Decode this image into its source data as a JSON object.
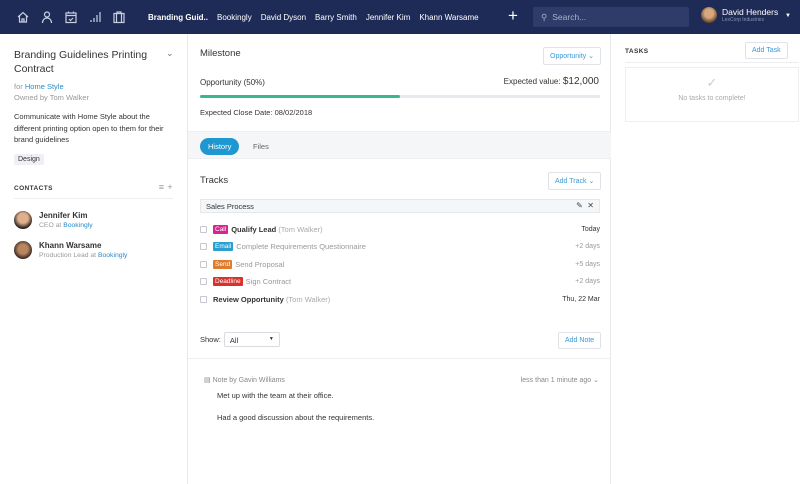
{
  "nav": {
    "icons": [
      "home-icon",
      "person-icon",
      "calendar-icon",
      "chart-bars-icon",
      "briefcase-icon"
    ],
    "tabs": [
      "Branding Guid..",
      "Bookingly",
      "David Dyson",
      "Barry Smith",
      "Jennifer Kim",
      "Khann Warsame"
    ],
    "search_placeholder": "Search...",
    "user_name": "David Henders",
    "user_company": "LexCorp Industries"
  },
  "deal": {
    "title": "Branding Guidelines Printing Contract",
    "for_label": "for",
    "company": "Home Style",
    "owner": "Owned by Tom Walker",
    "description": "Communicate with Home Style about the different printing option open to them for their brand guidelines",
    "tag": "Design"
  },
  "contacts": {
    "heading": "CONTACTS",
    "items": [
      {
        "name": "Jennifer Kim",
        "role": "CEO at",
        "company": "Bookingly"
      },
      {
        "name": "Khann Warsame",
        "role": "Production Lead at",
        "company": "Bookingly"
      }
    ]
  },
  "milestone": {
    "heading": "Milestone",
    "dropdown": "Opportunity",
    "stage": "Opportunity (50%)",
    "progress_percent": 50,
    "expected_label": "Expected value:",
    "expected_value": "$12,000",
    "close_date": "Expected Close Date: 08/02/2018",
    "progress_color": "#3bb88a"
  },
  "tabs": {
    "history": "History",
    "files": "Files"
  },
  "tracks": {
    "heading": "Tracks",
    "add_label": "Add Track",
    "process": "Sales Process",
    "items": [
      {
        "badge": "Call",
        "badge_color": "#d6268f",
        "title": "Qualify Lead",
        "owner": "(Tom Walker)",
        "due": "Today",
        "active": true
      },
      {
        "badge": "Email",
        "badge_color": "#2a9fd0",
        "title": "Complete Requirements Questionnaire",
        "owner": "",
        "due": "+2 days",
        "active": false
      },
      {
        "badge": "Send",
        "badge_color": "#e07b2b",
        "title": "Send Proposal",
        "owner": "",
        "due": "+5 days",
        "active": false
      },
      {
        "badge": "Deadline",
        "badge_color": "#d9322b",
        "title": "Sign Contract",
        "owner": "",
        "due": "+2 days",
        "active": false
      },
      {
        "badge": "",
        "title": "Review Opportunity",
        "owner": "(Tom Walker)",
        "due": "Thu, 22 Mar",
        "active": true
      }
    ]
  },
  "filter": {
    "label": "Show:",
    "value": "All",
    "add_note": "Add Note"
  },
  "note": {
    "author": "Note by Gavin Williams",
    "time": "less than 1 minute ago",
    "lines": [
      "Met up with the team at their office.",
      "Had a good discussion about the requirements."
    ]
  },
  "tasks": {
    "heading": "TASKS",
    "add_label": "Add Task",
    "empty": "No tasks to complete!"
  }
}
